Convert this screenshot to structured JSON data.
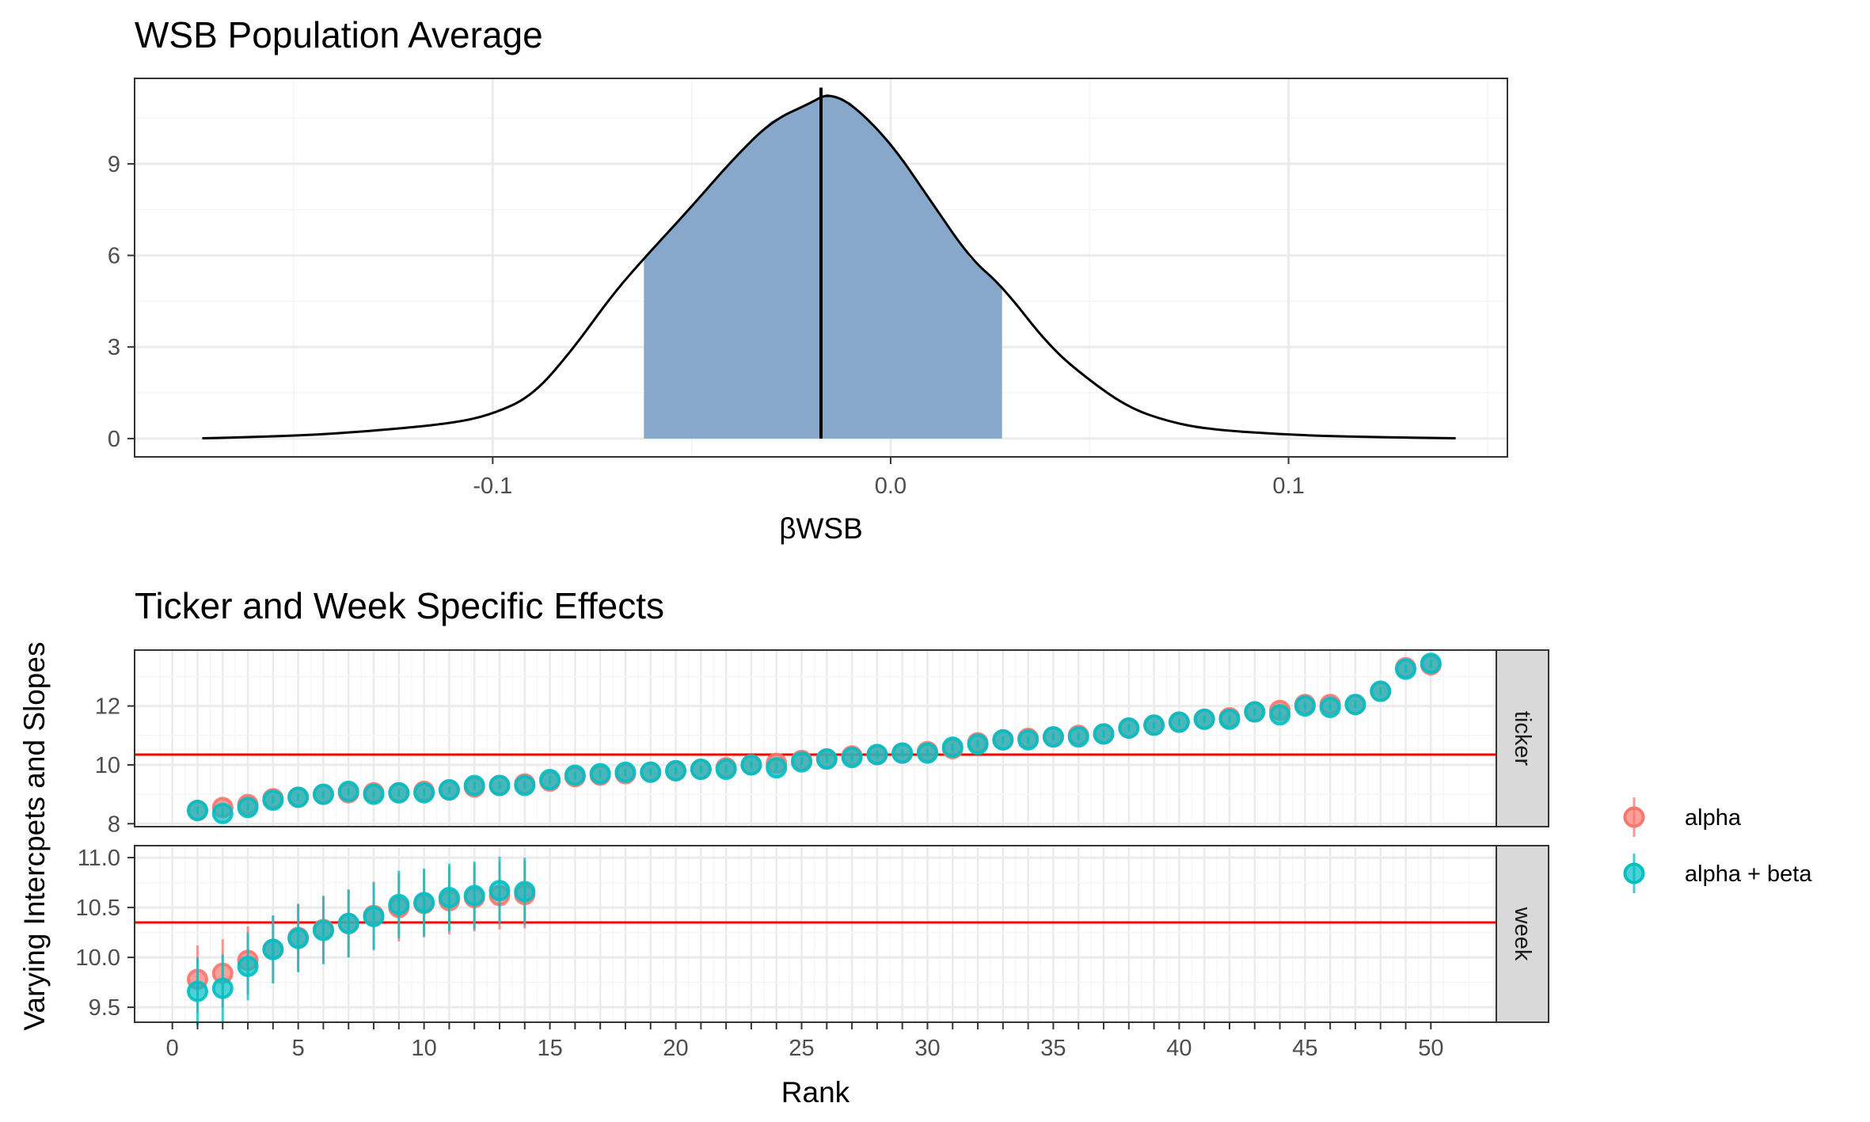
{
  "chart_data": [
    {
      "type": "area",
      "title": "WSB Population Average",
      "xlabel": "βWSB",
      "ylabel": "",
      "xlim": [
        -0.19,
        0.155
      ],
      "ylim": [
        -0.6,
        11.8
      ],
      "x_ticks": [
        -0.1,
        0.0,
        0.1
      ],
      "x_tick_labels": [
        "-0.1",
        "0.0",
        "0.1"
      ],
      "y_ticks": [
        0,
        3,
        6,
        9
      ],
      "y_tick_labels": [
        "0",
        "3",
        "6",
        "9"
      ],
      "grid": true,
      "density": {
        "x": [
          -0.173,
          -0.15,
          -0.13,
          -0.11,
          -0.1,
          -0.09,
          -0.08,
          -0.07,
          -0.062,
          -0.05,
          -0.04,
          -0.03,
          -0.02,
          -0.016,
          -0.01,
          0.0,
          0.01,
          0.02,
          0.028,
          0.04,
          0.05,
          0.06,
          0.07,
          0.08,
          0.1,
          0.12,
          0.142
        ],
        "y": [
          0.01,
          0.08,
          0.25,
          0.5,
          0.8,
          1.4,
          2.9,
          4.7,
          5.9,
          7.6,
          9.1,
          10.4,
          11.0,
          11.3,
          11.0,
          9.7,
          7.8,
          5.9,
          5.0,
          3.0,
          1.9,
          1.0,
          0.55,
          0.3,
          0.12,
          0.05,
          0.01
        ]
      },
      "interval": [
        -0.062,
        0.028
      ],
      "median": -0.0175,
      "fill_color": "#88a8cb"
    },
    {
      "type": "scatter",
      "title": "Ticker and Week Specific Effects",
      "xlabel": "Rank",
      "ylabel": "Varying Intercpets and Slopes",
      "xlim": [
        -1.5,
        52.6
      ],
      "x_ticks": [
        0,
        1,
        2,
        3,
        4,
        5,
        6,
        7,
        8,
        9,
        10,
        11,
        12,
        13,
        14,
        15,
        16,
        17,
        18,
        19,
        20,
        21,
        22,
        23,
        24,
        25,
        26,
        27,
        28,
        29,
        30,
        31,
        32,
        33,
        34,
        35,
        36,
        37,
        38,
        39,
        40,
        41,
        42,
        43,
        44,
        45,
        46,
        47,
        48,
        49,
        50
      ],
      "x_tick_labels": [
        "0",
        "5",
        "10",
        "15",
        "20",
        "25",
        "30",
        "35",
        "40",
        "45",
        "50"
      ],
      "x_tick_label_values": [
        0,
        5,
        10,
        15,
        20,
        25,
        30,
        35,
        40,
        45,
        50
      ],
      "legend": {
        "placement": "right",
        "entries": [
          {
            "label": "alpha",
            "color": "#f8766d"
          },
          {
            "label": "alpha + beta",
            "color": "#00bfc4"
          }
        ]
      },
      "facets": [
        {
          "strip_label": "ticker",
          "ylim": [
            7.9,
            13.9
          ],
          "y_ticks": [
            8,
            10,
            12
          ],
          "y_tick_labels": [
            "8",
            "10",
            "12"
          ],
          "hline": 10.35,
          "x": [
            1,
            2,
            3,
            4,
            5,
            6,
            7,
            8,
            9,
            10,
            11,
            12,
            13,
            14,
            15,
            16,
            17,
            18,
            19,
            20,
            21,
            22,
            23,
            24,
            25,
            26,
            27,
            28,
            29,
            30,
            31,
            32,
            33,
            34,
            35,
            36,
            37,
            38,
            39,
            40,
            41,
            42,
            43,
            44,
            45,
            46,
            47,
            48,
            49,
            50
          ],
          "series": [
            {
              "name": "alpha",
              "color": "#f8766d",
              "values": [
                8.45,
                8.55,
                8.65,
                8.85,
                8.9,
                9.0,
                9.05,
                9.05,
                9.05,
                9.1,
                9.15,
                9.25,
                9.3,
                9.35,
                9.45,
                9.6,
                9.65,
                9.7,
                9.75,
                9.8,
                9.85,
                9.9,
                10.0,
                10.05,
                10.15,
                10.2,
                10.3,
                10.35,
                10.4,
                10.45,
                10.55,
                10.75,
                10.85,
                10.9,
                10.95,
                11.0,
                11.05,
                11.25,
                11.35,
                11.45,
                11.55,
                11.6,
                11.8,
                11.85,
                12.05,
                12.05,
                12.05,
                12.5,
                13.3,
                13.4
              ],
              "errors": [
                0.12,
                0.12,
                0.12,
                0.12,
                0.12,
                0.12,
                0.12,
                0.12,
                0.12,
                0.12,
                0.12,
                0.12,
                0.12,
                0.12,
                0.12,
                0.12,
                0.12,
                0.12,
                0.12,
                0.12,
                0.12,
                0.12,
                0.12,
                0.12,
                0.12,
                0.12,
                0.12,
                0.12,
                0.12,
                0.12,
                0.12,
                0.12,
                0.12,
                0.12,
                0.12,
                0.12,
                0.12,
                0.12,
                0.12,
                0.12,
                0.12,
                0.12,
                0.12,
                0.12,
                0.12,
                0.12,
                0.12,
                0.12,
                0.12,
                0.12
              ]
            },
            {
              "name": "alpha + beta",
              "color": "#00bfc4",
              "values": [
                8.45,
                8.35,
                8.55,
                8.8,
                8.9,
                9.0,
                9.1,
                9.0,
                9.05,
                9.05,
                9.15,
                9.3,
                9.3,
                9.3,
                9.5,
                9.65,
                9.7,
                9.75,
                9.75,
                9.8,
                9.85,
                9.85,
                10.0,
                9.9,
                10.1,
                10.2,
                10.25,
                10.35,
                10.4,
                10.4,
                10.6,
                10.7,
                10.85,
                10.85,
                10.95,
                10.95,
                11.05,
                11.25,
                11.35,
                11.45,
                11.55,
                11.55,
                11.8,
                11.7,
                12.0,
                11.95,
                12.05,
                12.5,
                13.25,
                13.45
              ],
              "errors": [
                0.12,
                0.12,
                0.12,
                0.12,
                0.12,
                0.12,
                0.12,
                0.12,
                0.12,
                0.12,
                0.12,
                0.12,
                0.12,
                0.12,
                0.12,
                0.12,
                0.12,
                0.12,
                0.12,
                0.12,
                0.12,
                0.12,
                0.12,
                0.12,
                0.12,
                0.12,
                0.12,
                0.12,
                0.12,
                0.12,
                0.12,
                0.12,
                0.12,
                0.12,
                0.12,
                0.12,
                0.12,
                0.12,
                0.12,
                0.12,
                0.12,
                0.12,
                0.12,
                0.12,
                0.12,
                0.12,
                0.12,
                0.12,
                0.12,
                0.12
              ]
            }
          ]
        },
        {
          "strip_label": "week",
          "ylim": [
            9.35,
            11.12
          ],
          "y_ticks": [
            9.5,
            10.0,
            10.5,
            11.0
          ],
          "y_tick_labels": [
            "9.5",
            "10.0",
            "10.5",
            "11.0"
          ],
          "hline": 10.35,
          "x": [
            1,
            2,
            3,
            4,
            5,
            6,
            7,
            8,
            9,
            10,
            11,
            12,
            13,
            14
          ],
          "series": [
            {
              "name": "alpha",
              "color": "#f8766d",
              "values": [
                9.78,
                9.84,
                9.97,
                10.08,
                10.2,
                10.28,
                10.34,
                10.42,
                10.5,
                10.54,
                10.57,
                10.6,
                10.62,
                10.63
              ],
              "errors": [
                0.34,
                0.34,
                0.34,
                0.34,
                0.34,
                0.34,
                0.34,
                0.34,
                0.34,
                0.34,
                0.34,
                0.34,
                0.34,
                0.34
              ]
            },
            {
              "name": "alpha + beta",
              "color": "#00bfc4",
              "values": [
                9.66,
                9.69,
                9.91,
                10.08,
                10.19,
                10.27,
                10.34,
                10.41,
                10.53,
                10.55,
                10.6,
                10.62,
                10.67,
                10.66
              ],
              "errors": [
                0.34,
                0.34,
                0.34,
                0.34,
                0.34,
                0.34,
                0.34,
                0.34,
                0.34,
                0.34,
                0.34,
                0.34,
                0.34,
                0.34
              ]
            }
          ]
        }
      ]
    }
  ]
}
